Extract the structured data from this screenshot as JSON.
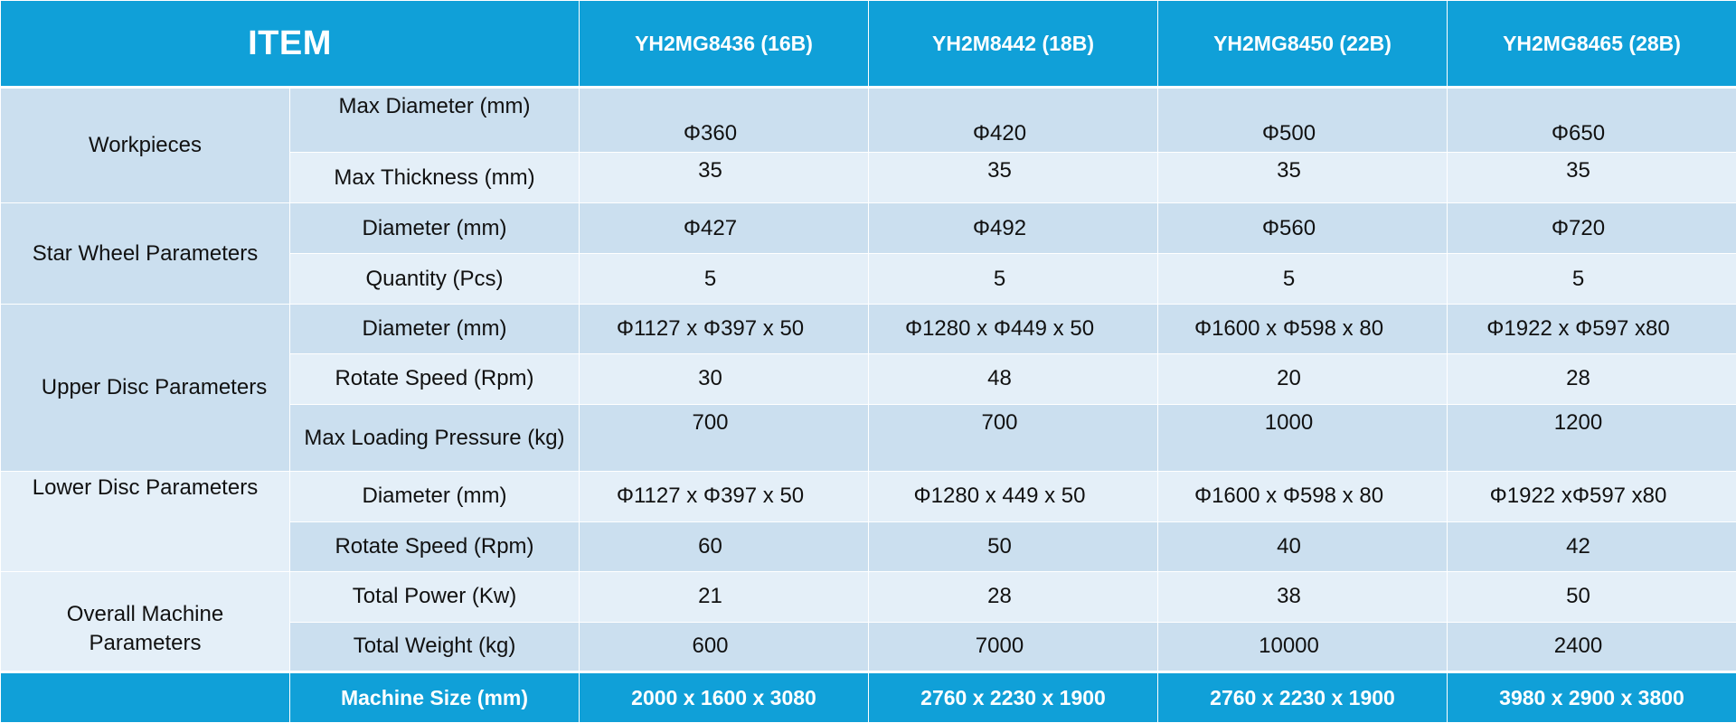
{
  "header": {
    "item_label": "ITEM",
    "models": [
      "YH2MG8436 (16B)",
      "YH2M8442 (18B)",
      "YH2MG8450 (22B)",
      "YH2MG8465 (28B)"
    ]
  },
  "groups": {
    "workpieces": "Workpieces",
    "star_wheel": "Star Wheel Parameters",
    "upper_disc": "Upper Disc Parameters",
    "lower_disc": "Lower Disc Parameters",
    "overall": "Overall Machine Parameters"
  },
  "rows": [
    {
      "label": "Max Diameter (mm)",
      "values": [
        "Φ360",
        "Φ420",
        "Φ500",
        "Φ650"
      ]
    },
    {
      "label": "Max Thickness (mm)",
      "values": [
        "35",
        "35",
        "35",
        "35"
      ]
    },
    {
      "label": "Diameter (mm)",
      "values": [
        "Φ427",
        "Φ492",
        "Φ560",
        "Φ720"
      ]
    },
    {
      "label": "Quantity (Pcs)",
      "values": [
        "5",
        "5",
        "5",
        "5"
      ]
    },
    {
      "label": "Diameter (mm)",
      "values": [
        "Φ1127 x Φ397 x 50",
        "Φ1280 x Φ449 x 50",
        "Φ1600 x Φ598 x 80",
        "Φ1922 x Φ597 x80"
      ]
    },
    {
      "label": "Rotate Speed (Rpm)",
      "values": [
        "30",
        "48",
        "20",
        "28"
      ]
    },
    {
      "label": "Max Loading Pressure (kg)",
      "values": [
        "700",
        "700",
        "1000",
        "1200"
      ]
    },
    {
      "label": "Diameter (mm)",
      "values": [
        "Φ1127 x Φ397 x 50",
        "Φ1280 x 449 x 50",
        "Φ1600 x Φ598 x 80",
        "Φ1922 xΦ597 x80"
      ]
    },
    {
      "label": "Rotate Speed (Rpm)",
      "values": [
        "60",
        "50",
        "40",
        "42"
      ]
    },
    {
      "label": "Total Power (Kw)",
      "values": [
        "21",
        "28",
        "38",
        "50"
      ]
    },
    {
      "label": "Total Weight (kg)",
      "values": [
        "600",
        "7000",
        "10000",
        "2400"
      ]
    }
  ],
  "footer": {
    "label": "Machine Size (mm)",
    "values": [
      "2000 x 1600 x 3080",
      "2760 x 2230 x 1900",
      "2760 x 2230 x 1900",
      "3980 x 2900 x 3800"
    ]
  },
  "colors": {
    "header_bg": "#10a0d8",
    "header_text": "#ffffff",
    "row_dark": "#cbdfef",
    "row_light": "#e4eff8",
    "text": "#111111"
  }
}
